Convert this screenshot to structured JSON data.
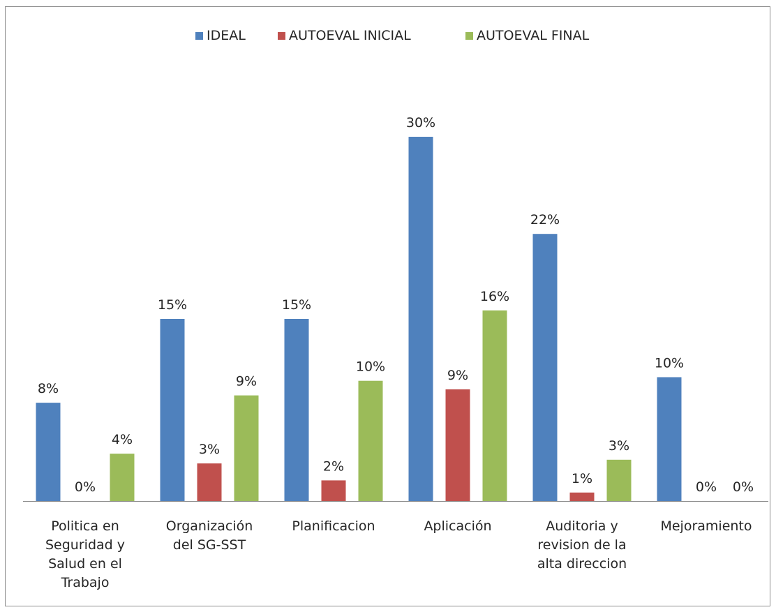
{
  "chart_data": {
    "type": "bar",
    "categories": [
      [
        "Politica en",
        "Seguridad y",
        "Salud en el",
        "Trabajo"
      ],
      [
        "Organización",
        "del SG-SST"
      ],
      [
        "Planificacion"
      ],
      [
        "Aplicación"
      ],
      [
        "Auditoria y",
        "revision de la",
        "alta direccion"
      ],
      [
        "Mejoramiento"
      ]
    ],
    "series": [
      {
        "name": "IDEAL",
        "color": "#4F81BD",
        "values": [
          8,
          15,
          15,
          30,
          22,
          10
        ]
      },
      {
        "name": "AUTOEVAL INICIAL",
        "color": "#C0504D",
        "values": [
          0,
          3,
          2,
          9,
          1,
          0
        ]
      },
      {
        "name": "AUTOEVAL FINAL",
        "color": "#9BBB59",
        "values": [
          4,
          9,
          10,
          16,
          3,
          0
        ]
      }
    ],
    "bar_heights": [
      [
        8.1,
        15.0,
        15.0,
        30.0,
        22.0,
        10.2
      ],
      [
        0.0,
        3.1,
        1.7,
        9.2,
        0.7,
        0.0
      ],
      [
        3.9,
        8.7,
        9.9,
        15.7,
        3.4,
        0.0
      ]
    ],
    "data_labels": [
      [
        "8%",
        "15%",
        "15%",
        "30%",
        "22%",
        "10%"
      ],
      [
        "0%",
        "3%",
        "2%",
        "9%",
        "1%",
        "0%"
      ],
      [
        "4%",
        "9%",
        "10%",
        "16%",
        "3%",
        "0%"
      ]
    ],
    "legend_position": "top",
    "ylim": [
      0,
      30
    ],
    "grid": false,
    "title": "",
    "xlabel": "",
    "ylabel": ""
  }
}
